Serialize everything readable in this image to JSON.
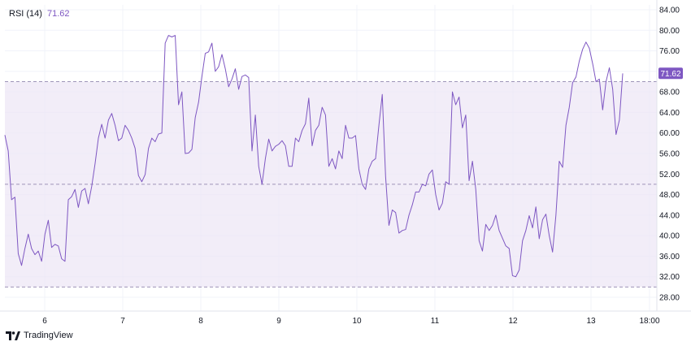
{
  "legend": {
    "name": "RSI (14)",
    "value": "71.62"
  },
  "brand": {
    "name": "TradingView",
    "logo": "tradingview-logo-icon"
  },
  "colors": {
    "line": "#7e57c2",
    "band": "#ede7f6",
    "bandLine": "#9e94b8",
    "grid": "#f0f3fa",
    "badge": "#7e57c2"
  },
  "chart_data": {
    "type": "line",
    "ylim": [
      28,
      84
    ],
    "y_ticks": [
      "84.00",
      "80.00",
      "76.00",
      "72.00",
      "68.00",
      "64.00",
      "60.00",
      "56.00",
      "52.00",
      "48.00",
      "44.00",
      "40.00",
      "36.00",
      "32.00",
      "28.00"
    ],
    "x_ticks": [
      "6",
      "7",
      "8",
      "9",
      "10",
      "11",
      "12",
      "13",
      "18:00"
    ],
    "x_tick_positions": [
      6,
      7,
      8,
      9,
      10,
      11,
      12,
      13,
      13.75
    ],
    "xlim": [
      5.43,
      13.9
    ],
    "bands": {
      "upper": 70,
      "middle": 50,
      "lower": 30
    },
    "last_value": 71.62,
    "series": [
      {
        "values": [
          59.6,
          56.5,
          47,
          47.5,
          36.5,
          34.2,
          37.5,
          40.3,
          37.5,
          36.3,
          37,
          35,
          40.3,
          43,
          37.7,
          38.3,
          38,
          35.5,
          35,
          47,
          47.6,
          49,
          45.5,
          48.7,
          49.2,
          46.2,
          49.6,
          54,
          59,
          61.7,
          59,
          62.5,
          63.8,
          61.5,
          58.5,
          59,
          61.5,
          60.5,
          59,
          57,
          51.7,
          50.5,
          51.9,
          57,
          59,
          58.3,
          59.8,
          60,
          77.5,
          79,
          78.7,
          79,
          65.5,
          68,
          56,
          56.1,
          56.8,
          63,
          66,
          71,
          75.5,
          75.8,
          77.5,
          72,
          72.9,
          75.3,
          72.5,
          69,
          70.5,
          72.5,
          68.5,
          71,
          71.3,
          70.8,
          56.5,
          63.5,
          53.5,
          50,
          55,
          58.8,
          56.5,
          57.4,
          57.8,
          58.5,
          57.5,
          53.5,
          53.5,
          59,
          58.3,
          60.5,
          61.8,
          66.8,
          57.5,
          60.5,
          61.5,
          65,
          63.5,
          53.5,
          55,
          53,
          56.5,
          55,
          61.5,
          59,
          59,
          59.5,
          53,
          50,
          49,
          53,
          54.5,
          55,
          61.5,
          67.5,
          51.5,
          42,
          45,
          44.5,
          40.5,
          41,
          41.2,
          44,
          46,
          48.5,
          48.5,
          50,
          49.7,
          52,
          52.8,
          48,
          45,
          46.3,
          50.5,
          50,
          68,
          65.5,
          67,
          61,
          63.5,
          50.7,
          54.5,
          49,
          39,
          37,
          42.2,
          41,
          42,
          44,
          41,
          39.5,
          38,
          37.5,
          32.2,
          32,
          33.3,
          39,
          41,
          43.9,
          41.5,
          45.6,
          39.4,
          43.1,
          44.2,
          40,
          36.8,
          44,
          54.5,
          53.3,
          61.5,
          65,
          69.8,
          70.9,
          74,
          76.3,
          77.7,
          76.5,
          73.5,
          70,
          70.5,
          64.5,
          70,
          72.7,
          68.5,
          59.7,
          62.5,
          71.6
        ]
      }
    ]
  }
}
